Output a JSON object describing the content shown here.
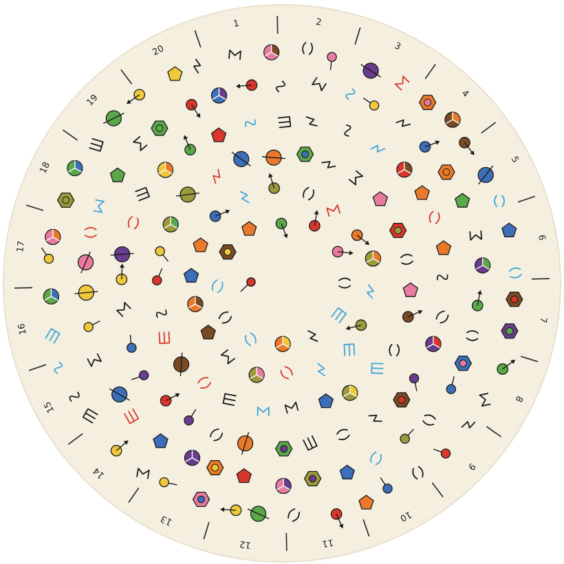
{
  "disc": {
    "background": "#f5efe0",
    "edge": "#e8e1cf",
    "tick_color": "#222222",
    "sector_labels": [
      "1",
      "2",
      "3",
      "4",
      "5",
      "6",
      "7",
      "8",
      "9",
      "10",
      "11",
      "12",
      "13",
      "14",
      "15",
      "16",
      "17",
      "18",
      "19",
      "20"
    ]
  },
  "palette": {
    "red": "#d8362b",
    "orange": "#ea7a2a",
    "yellow": "#f0c93a",
    "green": "#5aa84a",
    "blue": "#3c6fb8",
    "purple": "#6a3c8c",
    "pink": "#e77ba0",
    "brown": "#7a4a25",
    "olive": "#9c9a3a",
    "cyan": "#3aa6d8",
    "black": "#1a1a1a"
  },
  "symbol_kinds": [
    "hexagon-glyph",
    "pentagon-glyph",
    "tri-segment-circle",
    "crossed-circle",
    "stick-circle",
    "arrow-circle",
    "squiggle-glyph",
    "zigzag-glyph",
    "bracket-glyph",
    "sigma-glyph",
    "comb-glyph"
  ]
}
